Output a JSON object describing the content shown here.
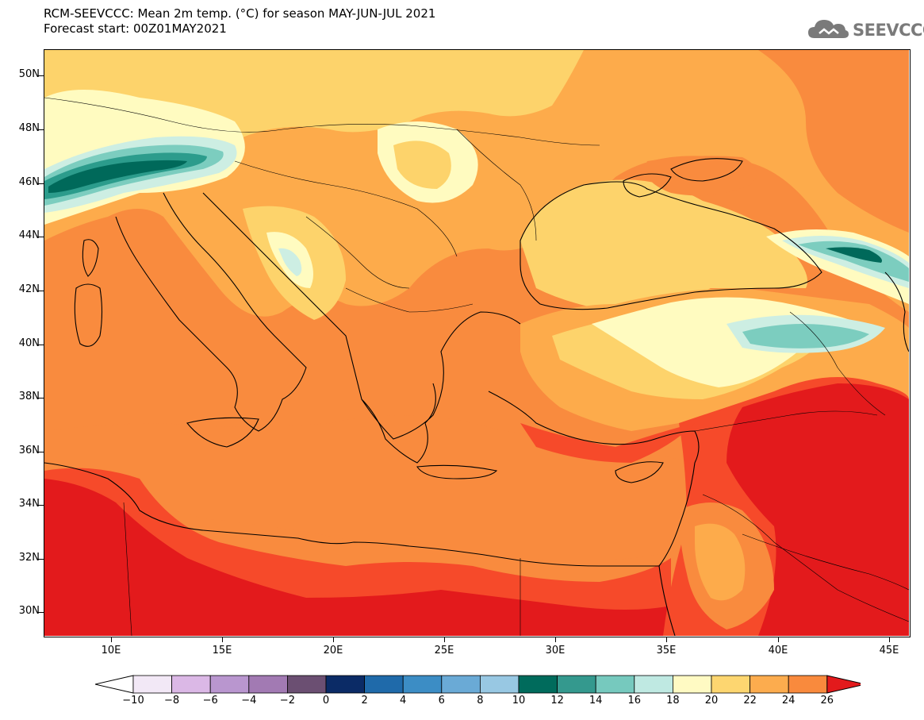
{
  "title": {
    "line1": "RCM-SEEVCCC: Mean 2m temp. (°C) for season MAY-JUN-JUL 2021",
    "line2": "Forecast start: 00Z01MAY2021"
  },
  "logo": {
    "text": "SEEVCCC",
    "icon": "cloud-icon"
  },
  "map": {
    "variable": "Mean 2m temperature",
    "units": "°C",
    "region": "Eastern Mediterranean / Balkans / Black Sea",
    "lat_labels": [
      "50N",
      "48N",
      "46N",
      "44N",
      "42N",
      "40N",
      "38N",
      "36N",
      "34N",
      "32N",
      "30N"
    ],
    "lon_labels": [
      "10E",
      "15E",
      "20E",
      "25E",
      "30E",
      "35E",
      "40E",
      "45E"
    ],
    "colors": {
      "t26": "#e31a1c",
      "t24": "#f64a2a",
      "t22": "#f98b3e",
      "t20": "#fdab4b",
      "t18": "#fdd36b",
      "t16": "#fffbc0",
      "t14": "#cdeee3",
      "t12": "#7ccdbf",
      "t10": "#2c9c8c",
      "t8": "#00695a"
    }
  },
  "colorbar": {
    "labels": [
      "−10",
      "−8",
      "−6",
      "−4",
      "−2",
      "0",
      "2",
      "4",
      "6",
      "8",
      "10",
      "12",
      "14",
      "16",
      "18",
      "20",
      "22",
      "24",
      "26"
    ],
    "colors": [
      "#f2e8f6",
      "#dbb8e6",
      "#b996cf",
      "#a27ab3",
      "#6b4f72",
      "#0b2b66",
      "#1f6aaa",
      "#3c8dc5",
      "#6aaad6",
      "#98c8e3",
      "#006b5c",
      "#34998e",
      "#76c9be",
      "#bfe9e2",
      "#fffac3",
      "#fdd670",
      "#fcac4e",
      "#f98a3d",
      "#f34c29"
    ],
    "under_color": "#ffffff",
    "over_color": "#e31a1c"
  }
}
